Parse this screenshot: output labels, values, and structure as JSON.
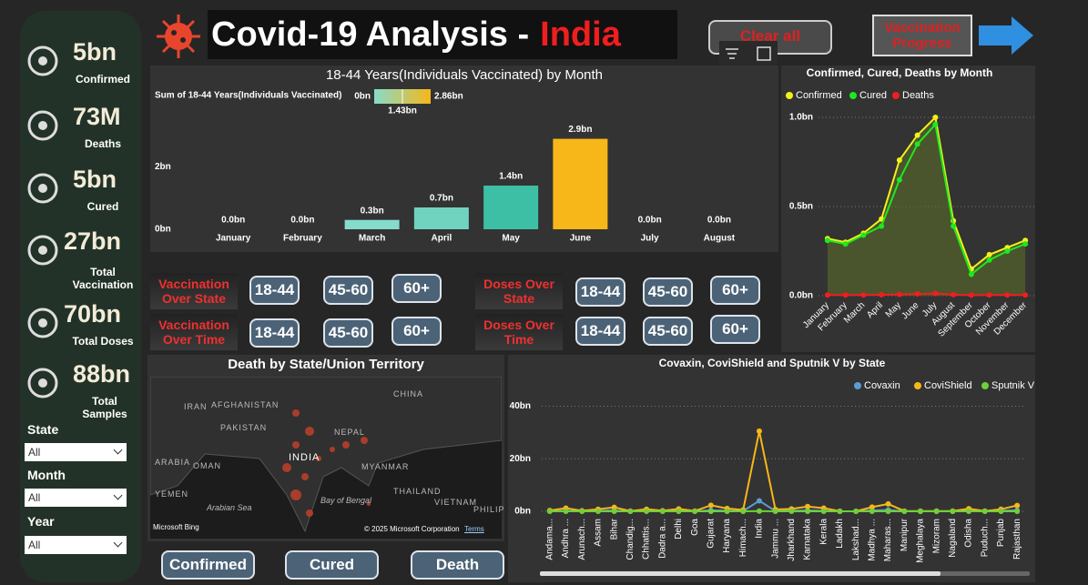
{
  "header": {
    "title": "Covid-19 Analysis -",
    "highlight": "India",
    "clear_button": "Clear all",
    "nav_button": "Vaccination Progress"
  },
  "sidebar": {
    "kpis": [
      {
        "value": "5bn",
        "label": "Confirmed"
      },
      {
        "value": "73M",
        "label": "Deaths"
      },
      {
        "value": "5bn",
        "label": "Cured"
      },
      {
        "value": "27bn",
        "label": "Total Vaccination"
      },
      {
        "value": "70bn",
        "label": "Total Doses"
      },
      {
        "value": "88bn",
        "label": "Total Samples"
      }
    ],
    "filters": [
      {
        "label": "State",
        "value": "All"
      },
      {
        "label": "Month",
        "value": "All"
      },
      {
        "label": "Year",
        "value": "All"
      }
    ]
  },
  "button_groups": [
    {
      "label": "Vaccination Over State",
      "buttons": [
        "18-44",
        "45-60",
        "60+"
      ]
    },
    {
      "label": "Vaccination Over Time",
      "buttons": [
        "18-44",
        "45-60",
        "60+"
      ]
    },
    {
      "label": "Doses Over State",
      "buttons": [
        "18-44",
        "45-60",
        "60+"
      ]
    },
    {
      "label": "Doses Over Time",
      "buttons": [
        "18-44",
        "45-60",
        "60+"
      ]
    }
  ],
  "bottom_buttons": [
    "Confirmed",
    "Cured",
    "Death"
  ],
  "map": {
    "title": "Death by State/Union Territory",
    "labels": [
      "IRAN",
      "AFGHANISTAN",
      "PAKISTAN",
      "INDIA",
      "CHINA",
      "NEPAL",
      "MYANMAR",
      "THAILAND",
      "VIETNAM",
      "ARABIA",
      "OMAN",
      "YEMEN",
      "Arabian Sea",
      "Bay of Bengal",
      "PHILIP"
    ],
    "logo": "Microsoft Bing",
    "attribution": "© 2025 Microsoft Corporation",
    "terms": "Terms"
  },
  "chart_data": [
    {
      "type": "bar",
      "title": "18-44 Years(Individuals Vaccinated) by Month",
      "categories": [
        "January",
        "February",
        "March",
        "April",
        "May",
        "June",
        "July",
        "August"
      ],
      "values": [
        0,
        0,
        0.3,
        0.7,
        1.4,
        2.9,
        0,
        0
      ],
      "value_labels": [
        "0.0bn",
        "0.0bn",
        "0.3bn",
        "0.7bn",
        "1.4bn",
        "2.9bn",
        "0.0bn",
        "0.0bn"
      ],
      "colors": [
        "#86dccb",
        "#86dccb",
        "#86dccb",
        "#6fd3c0",
        "#3dbfa5",
        "#f7b718",
        "#86dccb",
        "#86dccb"
      ],
      "ylim": [
        0,
        3.5
      ],
      "yticks": [
        {
          "value": 0,
          "label": "0bn"
        },
        {
          "value": 2,
          "label": "2bn"
        }
      ],
      "color_scale": {
        "title": "Sum of 18-44 Years(Individuals Vaccinated)",
        "colors": [
          "#86dccb",
          "#f7b718"
        ],
        "ticks": [
          {
            "value": 0,
            "label": "0bn"
          },
          {
            "value": 1.43,
            "label": "1.43bn"
          },
          {
            "value": 2.86,
            "label": "2.86bn"
          }
        ]
      }
    },
    {
      "type": "line",
      "title": "Confirmed, Cured, Deaths by Month",
      "categories": [
        "January",
        "February",
        "March",
        "April",
        "May",
        "June",
        "July",
        "August",
        "September",
        "October",
        "November",
        "December"
      ],
      "ylim": [
        0,
        1
      ],
      "yticks": [
        {
          "value": 0,
          "label": "0.0bn"
        },
        {
          "value": 0.5,
          "label": "0.5bn"
        },
        {
          "value": 1,
          "label": "1.0bn"
        }
      ],
      "grid": true,
      "area": true,
      "series": [
        {
          "name": "Confirmed",
          "color": "#f3f01a",
          "values": [
            0.32,
            0.3,
            0.35,
            0.43,
            0.76,
            0.9,
            1.0,
            0.42,
            0.15,
            0.23,
            0.27,
            0.31
          ]
        },
        {
          "name": "Cured",
          "color": "#1ee81e",
          "values": [
            0.31,
            0.29,
            0.34,
            0.39,
            0.65,
            0.85,
            0.96,
            0.39,
            0.12,
            0.2,
            0.25,
            0.29
          ]
        },
        {
          "name": "Deaths",
          "color": "#f01e1e",
          "values": [
            0.004,
            0.004,
            0.004,
            0.005,
            0.007,
            0.01,
            0.012,
            0.006,
            0.003,
            0.004,
            0.004,
            0.004
          ]
        }
      ]
    },
    {
      "type": "line",
      "title": "Covaxin, CoviShield and Sputnik V by State",
      "categories": [
        "Andama...",
        "Andhra ...",
        "Arunach...",
        "Assam",
        "Bihar",
        "Chandig...",
        "Chhattis...",
        "Dadra a...",
        "Delhi",
        "Goa",
        "Gujarat",
        "Haryana",
        "Himach...",
        "India",
        "Jammu ...",
        "Jharkhand",
        "Karnataka",
        "Kerala",
        "Ladakh",
        "Lakshad...",
        "Madhya ...",
        "Maharas...",
        "Manipur",
        "Meghalaya",
        "Mizoram",
        "Nagaland",
        "Odisha",
        "Puduch...",
        "Punjab",
        "Rajasthan"
      ],
      "ylim": [
        0,
        45
      ],
      "yticks": [
        {
          "value": 0,
          "label": "0bn"
        },
        {
          "value": 20,
          "label": "20bn"
        },
        {
          "value": 40,
          "label": "40bn"
        }
      ],
      "grid": true,
      "area": false,
      "series": [
        {
          "name": "Covaxin",
          "color": "#5b9bd5",
          "values": [
            0.05,
            0.2,
            0.05,
            0.2,
            0.3,
            0.02,
            0.2,
            0.03,
            0.3,
            0.02,
            0.4,
            0.2,
            0.1,
            4.0,
            0.1,
            0.2,
            0.3,
            0.2,
            0.01,
            0.01,
            0.3,
            0.5,
            0.02,
            0.02,
            0.02,
            0.02,
            0.2,
            0.02,
            0.2,
            0.4
          ]
        },
        {
          "name": "CoviShield",
          "color": "#f7b718",
          "values": [
            0.3,
            1.2,
            0.2,
            0.8,
            1.5,
            0.1,
            0.8,
            0.2,
            0.9,
            0.1,
            2.3,
            1.1,
            0.5,
            30.5,
            0.7,
            0.9,
            1.8,
            1.2,
            0.05,
            0.02,
            1.6,
            2.8,
            0.1,
            0.1,
            0.1,
            0.1,
            1.0,
            0.1,
            0.8,
            2.2
          ]
        },
        {
          "name": "Sputnik V",
          "color": "#6fcf3a",
          "values": [
            0,
            0,
            0,
            0,
            0,
            0,
            0,
            0,
            0,
            0,
            0,
            0,
            0,
            0.1,
            0,
            0,
            0,
            0,
            0,
            0,
            0,
            0,
            0,
            0,
            0,
            0,
            0,
            0,
            0,
            0
          ]
        }
      ]
    }
  ]
}
